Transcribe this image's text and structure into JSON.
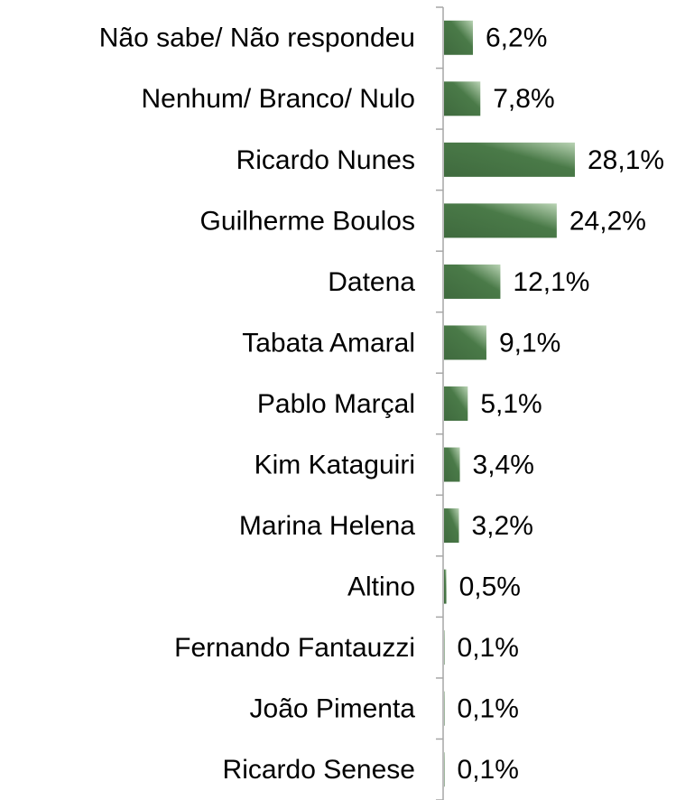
{
  "chart_data": {
    "type": "bar",
    "orientation": "horizontal",
    "categories": [
      "Não sabe/ Não respondeu",
      "Nenhum/ Branco/ Nulo",
      "Ricardo Nunes",
      "Guilherme Boulos",
      "Datena",
      "Tabata Amaral",
      "Pablo Marçal",
      "Kim Kataguiri",
      "Marina Helena",
      "Altino",
      "Fernando Fantauzzi",
      "João Pimenta",
      "Ricardo Senese"
    ],
    "values": [
      6.2,
      7.8,
      28.1,
      24.2,
      12.1,
      9.1,
      5.1,
      3.4,
      3.2,
      0.5,
      0.1,
      0.1,
      0.1
    ],
    "value_labels": [
      "6,2%",
      "7,8%",
      "28,1%",
      "24,2%",
      "12,1%",
      "9,1%",
      "5,1%",
      "3,4%",
      "3,2%",
      "0,5%",
      "0,1%",
      "0,1%",
      "0,1%"
    ],
    "color": "#3f6a3e"
  }
}
